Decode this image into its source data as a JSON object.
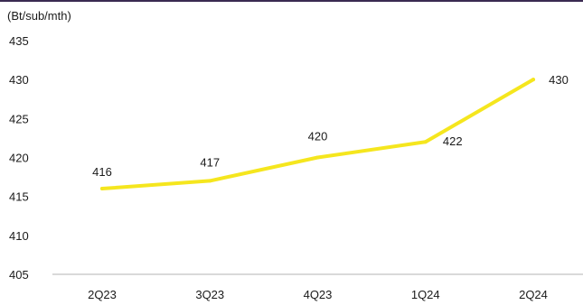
{
  "chart_data": {
    "type": "line",
    "unit_label": "(Bt/sub/mth)",
    "categories": [
      "2Q23",
      "3Q23",
      "4Q23",
      "1Q24",
      "2Q24"
    ],
    "series": [
      {
        "values": [
          416,
          417,
          420,
          422,
          430
        ],
        "color": "#f5e61e"
      }
    ],
    "data_labels": [
      "416",
      "417",
      "420",
      "422",
      "430"
    ],
    "y_ticks": [
      405,
      410,
      415,
      420,
      425,
      430,
      435
    ],
    "ylim": [
      405,
      435
    ],
    "grid": false,
    "legend": "none"
  }
}
